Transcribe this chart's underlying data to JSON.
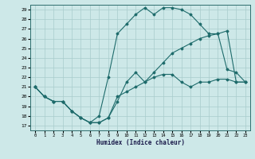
{
  "xlabel": "Humidex (Indice chaleur)",
  "xlim": [
    -0.5,
    23.5
  ],
  "ylim": [
    16.5,
    29.5
  ],
  "yticks": [
    17,
    18,
    19,
    20,
    21,
    22,
    23,
    24,
    25,
    26,
    27,
    28,
    29
  ],
  "xticks": [
    0,
    1,
    2,
    3,
    4,
    5,
    6,
    7,
    8,
    9,
    10,
    11,
    12,
    13,
    14,
    15,
    16,
    17,
    18,
    19,
    20,
    21,
    22,
    23
  ],
  "line_color": "#1e6b6b",
  "bg_color": "#cde8e8",
  "grid_color": "#a8cccc",
  "line1_x": [
    0,
    1,
    2,
    3,
    4,
    5,
    6,
    7,
    8,
    9,
    10,
    11,
    12,
    13,
    14,
    15,
    16,
    17,
    18,
    19,
    20,
    21,
    22,
    23
  ],
  "line1_y": [
    21,
    20,
    19.5,
    19.5,
    18.5,
    17.8,
    17.3,
    17.3,
    17.8,
    19.5,
    21.5,
    22.5,
    21.5,
    22,
    22.3,
    22.3,
    21.5,
    21,
    21.5,
    21.5,
    21.8,
    21.8,
    21.5,
    21.5
  ],
  "line2_x": [
    0,
    1,
    2,
    3,
    4,
    5,
    6,
    7,
    8,
    9,
    10,
    11,
    12,
    13,
    14,
    15,
    16,
    17,
    18,
    19,
    20,
    21,
    22,
    23
  ],
  "line2_y": [
    21,
    20,
    19.5,
    19.5,
    18.5,
    17.8,
    17.3,
    18.0,
    22.0,
    26.5,
    27.5,
    28.5,
    29.2,
    28.5,
    29.2,
    29.2,
    29.0,
    28.5,
    27.5,
    26.5,
    26.5,
    22.8,
    22.5,
    21.5
  ],
  "line3_x": [
    0,
    1,
    2,
    3,
    4,
    5,
    6,
    7,
    8,
    9,
    10,
    11,
    12,
    13,
    14,
    15,
    16,
    17,
    18,
    19,
    20,
    21,
    22,
    23
  ],
  "line3_y": [
    21,
    20,
    19.5,
    19.5,
    18.5,
    17.8,
    17.3,
    17.3,
    17.8,
    20.0,
    20.5,
    21.0,
    21.5,
    22.5,
    23.5,
    24.5,
    25.0,
    25.5,
    26.0,
    26.3,
    26.5,
    26.8,
    21.5,
    21.5
  ]
}
